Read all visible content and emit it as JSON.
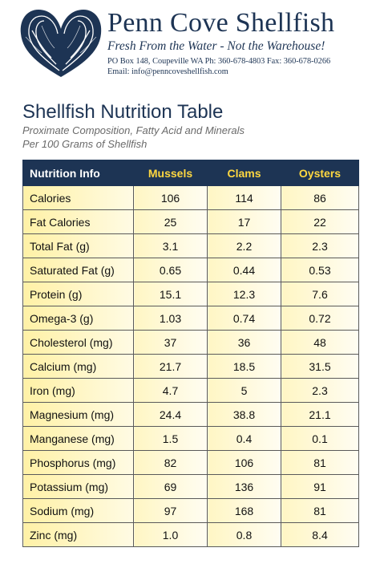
{
  "header": {
    "brand_name": "Penn Cove Shellfish",
    "tagline": "Fresh From the Water - Not the Warehouse!",
    "address_line": "PO Box 148, Coupeville WA Ph: 360-678-4803 Fax: 360-678-0266",
    "email_line": "Email: info@penncoveshellfish.com",
    "logo_icon": "mussel-shell-logo-icon",
    "colors": {
      "navy": "#1d3454",
      "gold": "#ffd840",
      "row_fill": "#fff1a6"
    }
  },
  "titles": {
    "main": "Shellfish Nutrition Table",
    "subtitle1": "Proximate Composition, Fatty Acid and Minerals",
    "subtitle2": "Per 100 Grams of Shellfish"
  },
  "table": {
    "headers": [
      "Nutrition Info",
      "Mussels",
      "Clams",
      "Oysters"
    ],
    "rows": [
      [
        "Calories",
        "106",
        "114",
        "86"
      ],
      [
        "Fat Calories",
        "25",
        "17",
        "22"
      ],
      [
        "Total Fat (g)",
        "3.1",
        "2.2",
        "2.3"
      ],
      [
        "Saturated Fat (g)",
        "0.65",
        "0.44",
        "0.53"
      ],
      [
        "Protein (g)",
        "15.1",
        "12.3",
        "7.6"
      ],
      [
        "Omega-3 (g)",
        "1.03",
        "0.74",
        "0.72"
      ],
      [
        "Cholesterol (mg)",
        "37",
        "36",
        "48"
      ],
      [
        "Calcium (mg)",
        "21.7",
        "18.5",
        "31.5"
      ],
      [
        "Iron (mg)",
        "4.7",
        "5",
        "2.3"
      ],
      [
        "Magnesium (mg)",
        "24.4",
        "38.8",
        "21.1"
      ],
      [
        "Manganese (mg)",
        "1.5",
        "0.4",
        "0.1"
      ],
      [
        "Phosphorus (mg)",
        "82",
        "106",
        "81"
      ],
      [
        "Potassium (mg)",
        "69",
        "136",
        "91"
      ],
      [
        "Sodium (mg)",
        "97",
        "168",
        "81"
      ],
      [
        "Zinc (mg)",
        "1.0",
        "0.8",
        "8.4"
      ]
    ]
  }
}
